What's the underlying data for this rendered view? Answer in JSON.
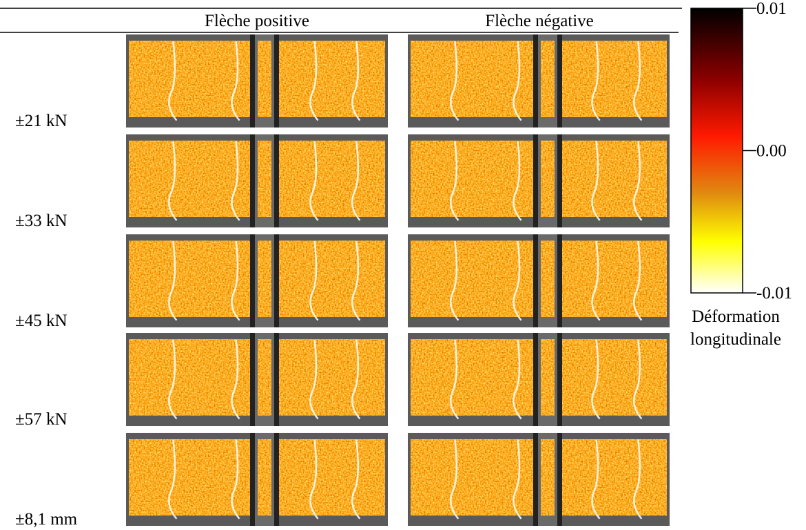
{
  "columns": [
    "Flèche positive",
    "Flèche négative"
  ],
  "rows": [
    "±21 kN",
    "±33 kN",
    "±45 kN",
    "±57 kN",
    "±8,1 mm"
  ],
  "colorbar": {
    "ticks": [
      0.01,
      {
        "value": 0,
        "label": "0.00"
      },
      -0.01
    ],
    "label": [
      "Déformation",
      "longitudinale"
    ]
  }
}
